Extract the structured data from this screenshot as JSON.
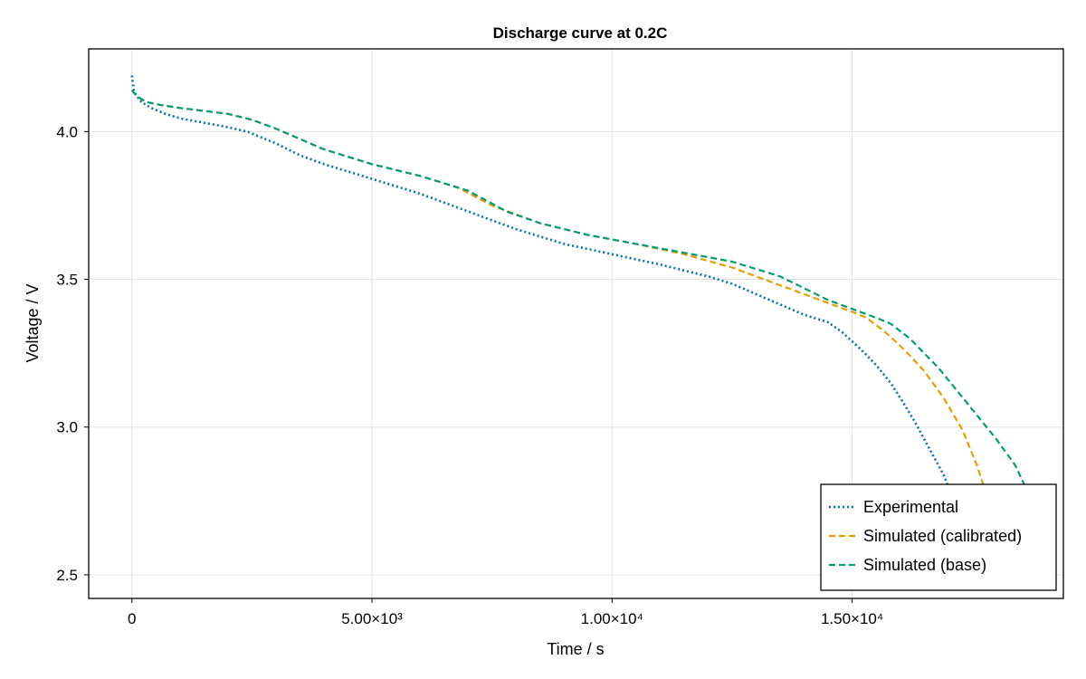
{
  "chart_data": {
    "type": "line",
    "title": "Discharge curve at 0.2C",
    "xlabel": "Time / s",
    "ylabel": "Voltage / V",
    "xlim": [
      -900,
      19400
    ],
    "ylim": [
      2.42,
      4.28
    ],
    "grid": true,
    "legend_position": "bottom-right",
    "x_ticks": [
      {
        "value": 0,
        "label": "0"
      },
      {
        "value": 5000,
        "label": "5.00×10³"
      },
      {
        "value": 10000,
        "label": "1.00×10⁴"
      },
      {
        "value": 15000,
        "label": "1.50×10⁴"
      }
    ],
    "y_ticks": [
      {
        "value": 2.5,
        "label": "2.5"
      },
      {
        "value": 3.0,
        "label": "3.0"
      },
      {
        "value": 3.5,
        "label": "3.5"
      },
      {
        "value": 4.0,
        "label": "4.0"
      }
    ],
    "series": [
      {
        "name": "Experimental",
        "style": "dotted",
        "color": "#0072b2",
        "x": [
          0,
          40,
          100,
          200,
          400,
          700,
          1000,
          1500,
          2000,
          2400,
          3000,
          3500,
          4000,
          5000,
          6000,
          7000,
          8000,
          9000,
          10000,
          11000,
          12000,
          12500,
          13000,
          13500,
          14000,
          14500,
          14800,
          15000,
          15200,
          15500,
          15800,
          16000,
          16300,
          16600,
          16900,
          17100
        ],
        "y": [
          4.19,
          4.14,
          4.12,
          4.1,
          4.08,
          4.06,
          4.045,
          4.03,
          4.015,
          4.0,
          3.96,
          3.92,
          3.89,
          3.84,
          3.79,
          3.73,
          3.67,
          3.62,
          3.585,
          3.55,
          3.51,
          3.485,
          3.45,
          3.415,
          3.38,
          3.355,
          3.32,
          3.29,
          3.26,
          3.21,
          3.15,
          3.1,
          3.02,
          2.93,
          2.84,
          2.76
        ]
      },
      {
        "name": "Simulated (calibrated)",
        "style": "dashed",
        "color": "#e69f00",
        "x": [
          0,
          100,
          300,
          600,
          1000,
          1500,
          2000,
          2500,
          3000,
          4000,
          5000,
          6000,
          6800,
          7500,
          8500,
          9500,
          10500,
          11500,
          12500,
          13500,
          14500,
          15000,
          15300,
          15700,
          16100,
          16500,
          16900,
          17300,
          17600,
          17800
        ],
        "y": [
          4.14,
          4.12,
          4.1,
          4.09,
          4.08,
          4.07,
          4.06,
          4.04,
          4.01,
          3.94,
          3.89,
          3.85,
          3.81,
          3.75,
          3.69,
          3.65,
          3.62,
          3.585,
          3.54,
          3.48,
          3.42,
          3.39,
          3.37,
          3.32,
          3.26,
          3.19,
          3.1,
          2.99,
          2.87,
          2.77
        ]
      },
      {
        "name": "Simulated (base)",
        "style": "dashed",
        "color": "#009e73",
        "x": [
          0,
          100,
          300,
          600,
          1000,
          1500,
          2000,
          2500,
          3000,
          4000,
          5000,
          6000,
          7000,
          7800,
          8500,
          9500,
          10500,
          11500,
          12500,
          13500,
          14500,
          15000,
          15500,
          15800,
          16200,
          16800,
          17400,
          18000,
          18400,
          18600
        ],
        "y": [
          4.14,
          4.12,
          4.1,
          4.09,
          4.08,
          4.07,
          4.06,
          4.04,
          4.01,
          3.94,
          3.89,
          3.85,
          3.8,
          3.73,
          3.69,
          3.65,
          3.62,
          3.59,
          3.56,
          3.51,
          3.43,
          3.4,
          3.37,
          3.35,
          3.3,
          3.2,
          3.08,
          2.96,
          2.87,
          2.8
        ]
      }
    ]
  }
}
